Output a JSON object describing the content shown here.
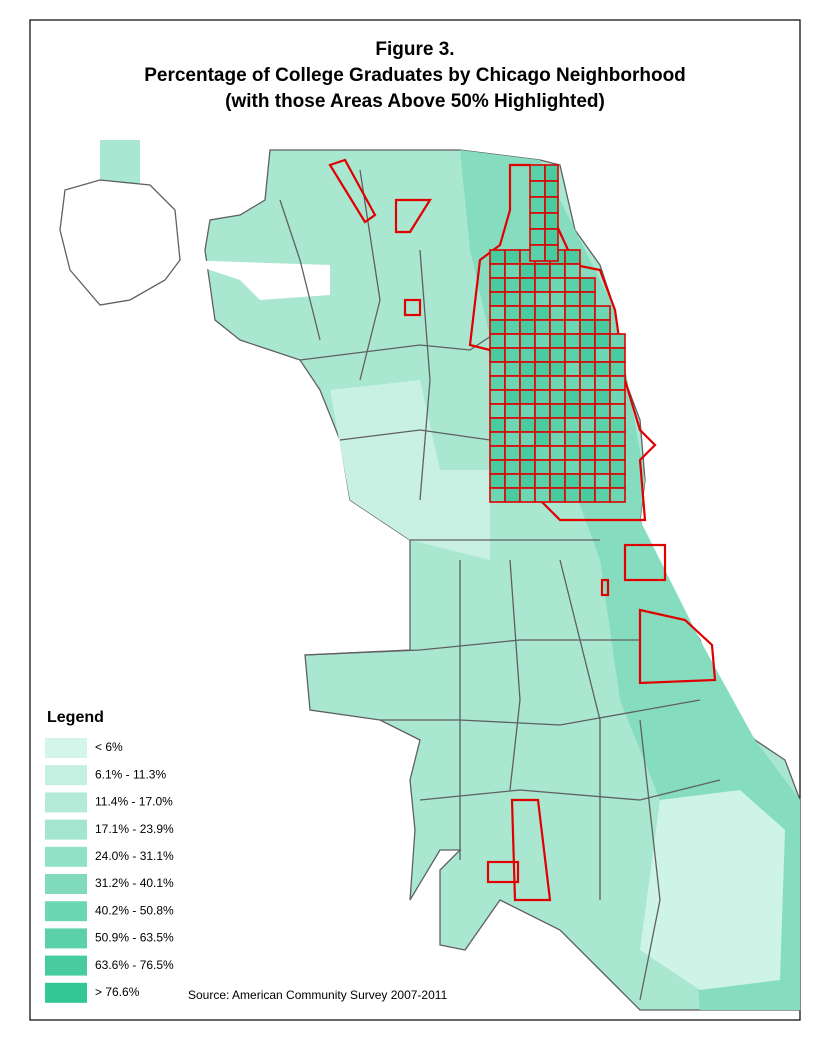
{
  "title": [
    "Figure 3.",
    "Percentage of College Graduates by Chicago Neighborhood",
    "(with those Areas Above 50% Highlighted)"
  ],
  "legend": {
    "title": "Legend",
    "items": [
      {
        "label": "< 6%",
        "color": "#d4f5ea"
      },
      {
        "label": "6.1% - 11.3%",
        "color": "#c4f0e1"
      },
      {
        "label": "11.4% - 17.0%",
        "color": "#b3ebd8"
      },
      {
        "label": "17.1% - 23.9%",
        "color": "#a2e6cf"
      },
      {
        "label": "24.0% - 31.1%",
        "color": "#91e1c6"
      },
      {
        "label": "31.2% - 40.1%",
        "color": "#7fdbbc"
      },
      {
        "label": "40.2% - 50.8%",
        "color": "#6dd6b2"
      },
      {
        "label": "50.9% - 63.5%",
        "color": "#5bd1a9"
      },
      {
        "label": "63.6% - 76.5%",
        "color": "#48cc9f"
      },
      {
        "label": "> 76.6%",
        "color": "#33c795"
      }
    ]
  },
  "source": "Source: American Community Survey 2007-2011"
}
